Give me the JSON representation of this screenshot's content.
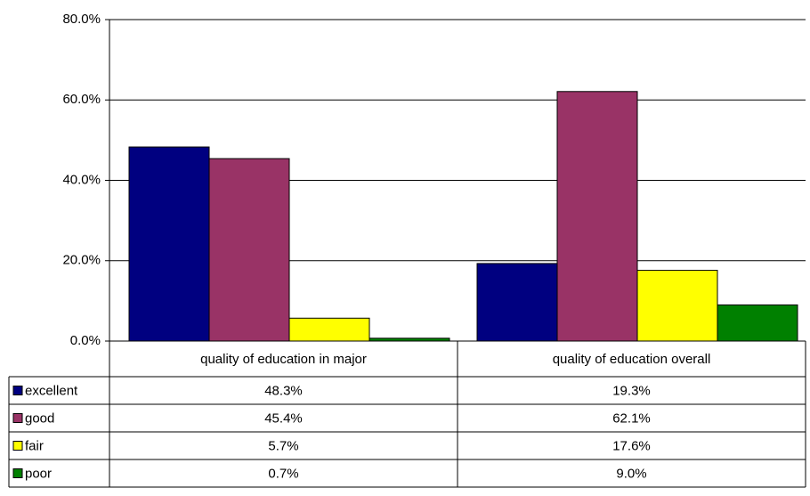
{
  "chart_data": {
    "type": "bar",
    "categories": [
      "quality of education in major",
      "quality of education overall"
    ],
    "series": [
      {
        "name": "excellent",
        "color": "#000080",
        "values": [
          48.3,
          19.3
        ],
        "value_labels": [
          "48.3%",
          "19.3%"
        ]
      },
      {
        "name": "good",
        "color": "#993366",
        "values": [
          45.4,
          62.1
        ],
        "value_labels": [
          "45.4%",
          "62.1%"
        ]
      },
      {
        "name": "fair",
        "color": "#FFFF00",
        "values": [
          5.7,
          17.6
        ],
        "value_labels": [
          "5.7%",
          "17.6%"
        ]
      },
      {
        "name": "poor",
        "color": "#008000",
        "values": [
          0.7,
          9.0
        ],
        "value_labels": [
          "0.7%",
          "9.0%"
        ]
      }
    ],
    "ylim": [
      0,
      80
    ],
    "yticks": [
      {
        "value": 0,
        "label": "0.0%"
      },
      {
        "value": 20,
        "label": "20.0%"
      },
      {
        "value": 40,
        "label": "40.0%"
      },
      {
        "value": 60,
        "label": "60.0%"
      },
      {
        "value": 80,
        "label": "80.0%"
      }
    ],
    "grid": true
  }
}
